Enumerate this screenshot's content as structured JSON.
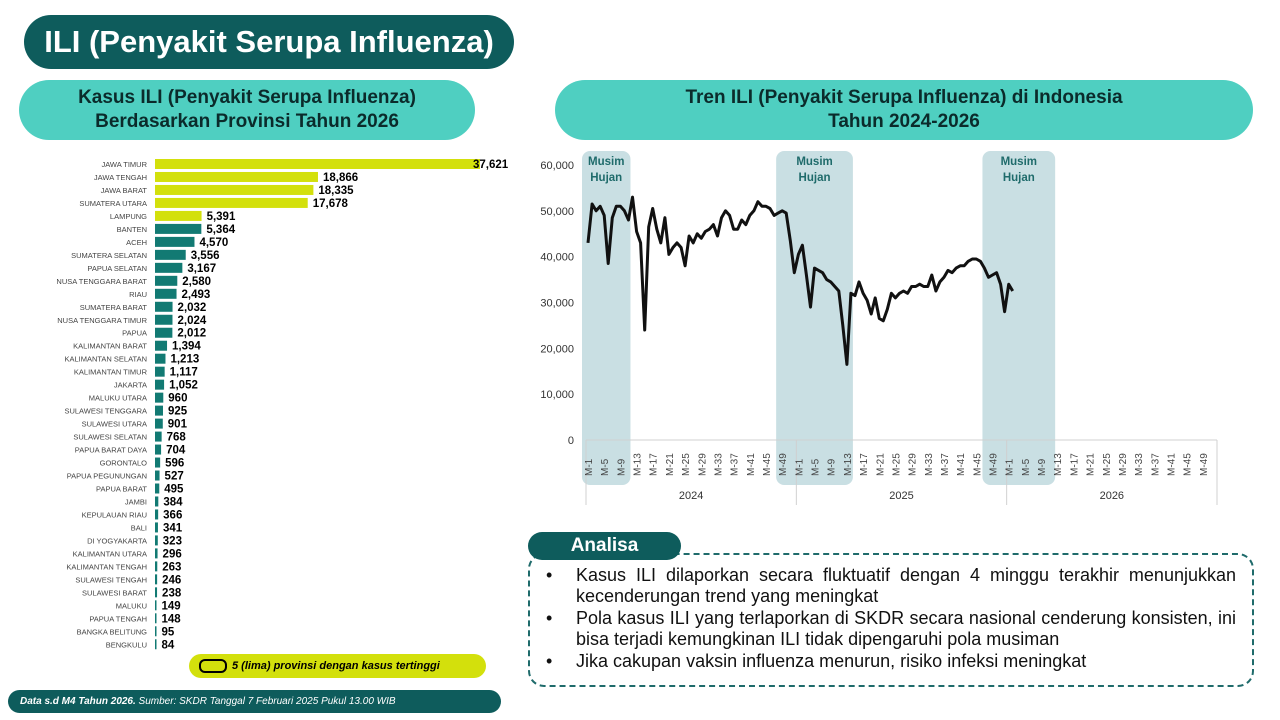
{
  "header": {
    "title": "ILI (Penyakit Serupa Influenza)",
    "left_subtitle_line1": "Kasus ILI (Penyakit Serupa Influenza)",
    "left_subtitle_line2": "Berdasarkan Provinsi Tahun 2026",
    "right_subtitle_line1": "Tren ILI (Penyakit Serupa Influenza) di Indonesia",
    "right_subtitle_line2": "Tahun 2024-2026"
  },
  "legend": {
    "text": "5 (lima) provinsi dengan kasus tertinggi"
  },
  "footer": {
    "bold": "Data s.d M4 Tahun 2026.",
    "text": " Sumber: SKDR Tanggal 7 Februari 2025 Pukul 13.00 WIB"
  },
  "analisa": {
    "label": "Analisa",
    "points": [
      "Kasus ILI dilaporkan secara fluktuatif dengan 4 minggu terakhir menunjukkan kecenderungan trend yang meningkat",
      "Pola kasus ILI yang terlaporkan di SKDR secara nasional cenderung konsisten, ini bisa terjadi kemungkinan ILI tidak dipengaruhi pola musiman",
      "Jika cakupan vaksin influenza menurun, risiko infeksi meningkat"
    ]
  },
  "colors": {
    "dark_teal": "#0e5c5c",
    "light_teal": "#4fcfc1",
    "highlight_bar": "#d3e00c",
    "normal_bar": "#127a73",
    "season_band": "#c9dfe3"
  },
  "chart_data": [
    {
      "type": "bar",
      "orientation": "horizontal",
      "categories": [
        "JAWA TIMUR",
        "JAWA TENGAH",
        "JAWA BARAT",
        "SUMATERA UTARA",
        "LAMPUNG",
        "BANTEN",
        "ACEH",
        "SUMATERA SELATAN",
        "PAPUA SELATAN",
        "NUSA TENGGARA BARAT",
        "RIAU",
        "SUMATERA BARAT",
        "NUSA TENGGARA TIMUR",
        "PAPUA",
        "KALIMANTAN BARAT",
        "KALIMANTAN SELATAN",
        "KALIMANTAN TIMUR",
        "JAKARTA",
        "MALUKU UTARA",
        "SULAWESI TENGGARA",
        "SULAWESI UTARA",
        "SULAWESI SELATAN",
        "PAPUA BARAT DAYA",
        "GORONTALO",
        "PAPUA PEGUNUNGAN",
        "PAPUA BARAT",
        "JAMBI",
        "KEPULAUAN RIAU",
        "BALI",
        "DI YOGYAKARTA",
        "KALIMANTAN UTARA",
        "KALIMANTAN TENGAH",
        "SULAWESI TENGAH",
        "SULAWESI BARAT",
        "MALUKU",
        "PAPUA TENGAH",
        "BANGKA BELITUNG",
        "BENGKULU"
      ],
      "values": [
        37621,
        18866,
        18335,
        17678,
        5391,
        5364,
        4570,
        3556,
        3167,
        2580,
        2493,
        2032,
        2024,
        2012,
        1394,
        1213,
        1117,
        1052,
        960,
        925,
        901,
        768,
        704,
        596,
        527,
        495,
        384,
        366,
        341,
        323,
        296,
        263,
        246,
        238,
        149,
        148,
        95,
        84
      ],
      "value_labels": [
        "37,621",
        "18,866",
        "18,335",
        "17,678",
        "5,391",
        "5,364",
        "4,570",
        "3,556",
        "3,167",
        "2,580",
        "2,493",
        "2,032",
        "2,024",
        "2,012",
        "1,394",
        "1,213",
        "1,117",
        "1,052",
        "960",
        "925",
        "901",
        "768",
        "704",
        "596",
        "527",
        "495",
        "384",
        "366",
        "341",
        "323",
        "296",
        "263",
        "246",
        "238",
        "149",
        "148",
        "95",
        "84"
      ],
      "highlighted_top": 5,
      "xlim": [
        0,
        37621
      ]
    },
    {
      "type": "line",
      "y_ticks": [
        "0",
        "10,000",
        "20,000",
        "30,000",
        "40,000",
        "50,000",
        "60,000"
      ],
      "ylim": [
        0,
        60000
      ],
      "x_week_labels": [
        "M-1",
        "M-5",
        "M-9",
        "M-13",
        "M-17",
        "M-21",
        "M-25",
        "M-29",
        "M-33",
        "M-37",
        "M-41",
        "M-45",
        "M-49"
      ],
      "years": [
        "2024",
        "2025",
        "2026"
      ],
      "weeks_per_year": 52,
      "season_label": "Musim Hujan",
      "rainy_seasons": [
        {
          "start": 1,
          "end": 10
        },
        {
          "start": 49,
          "end": 65
        },
        {
          "start": 100,
          "end": 115
        }
      ],
      "series": [
        {
          "values": [
            43000,
            51500,
            50000,
            51000,
            49000,
            38500,
            48500,
            51000,
            51000,
            50000,
            48000,
            53000,
            45500,
            43000,
            24000,
            46500,
            50500,
            46000,
            43000,
            48500,
            40500,
            42000,
            43000,
            42000,
            38000,
            44500,
            43000,
            45000,
            44000,
            45500,
            46000,
            47000,
            44500,
            48500,
            50000,
            49000,
            46000,
            46000,
            48000,
            47000,
            49000,
            50000,
            52000,
            51000,
            51000,
            50500,
            49000,
            49500,
            50000,
            49500,
            43500,
            36500,
            40500,
            42500,
            36000,
            29000,
            37500,
            37000,
            36500,
            35000,
            34500,
            33500,
            32500,
            25000,
            16500,
            32000,
            31500,
            34500,
            32000,
            30500,
            27500,
            31000,
            26500,
            26000,
            28500,
            32000,
            31000,
            32000,
            32500,
            32000,
            33500,
            33500,
            34000,
            33500,
            33500,
            36000,
            32500,
            34500,
            35500,
            37000,
            36500,
            37500,
            38000,
            38000,
            39000,
            39500,
            39500,
            39000,
            37500,
            35500,
            36000,
            36500,
            34000,
            28000,
            34000,
            32500
          ]
        }
      ]
    }
  ]
}
